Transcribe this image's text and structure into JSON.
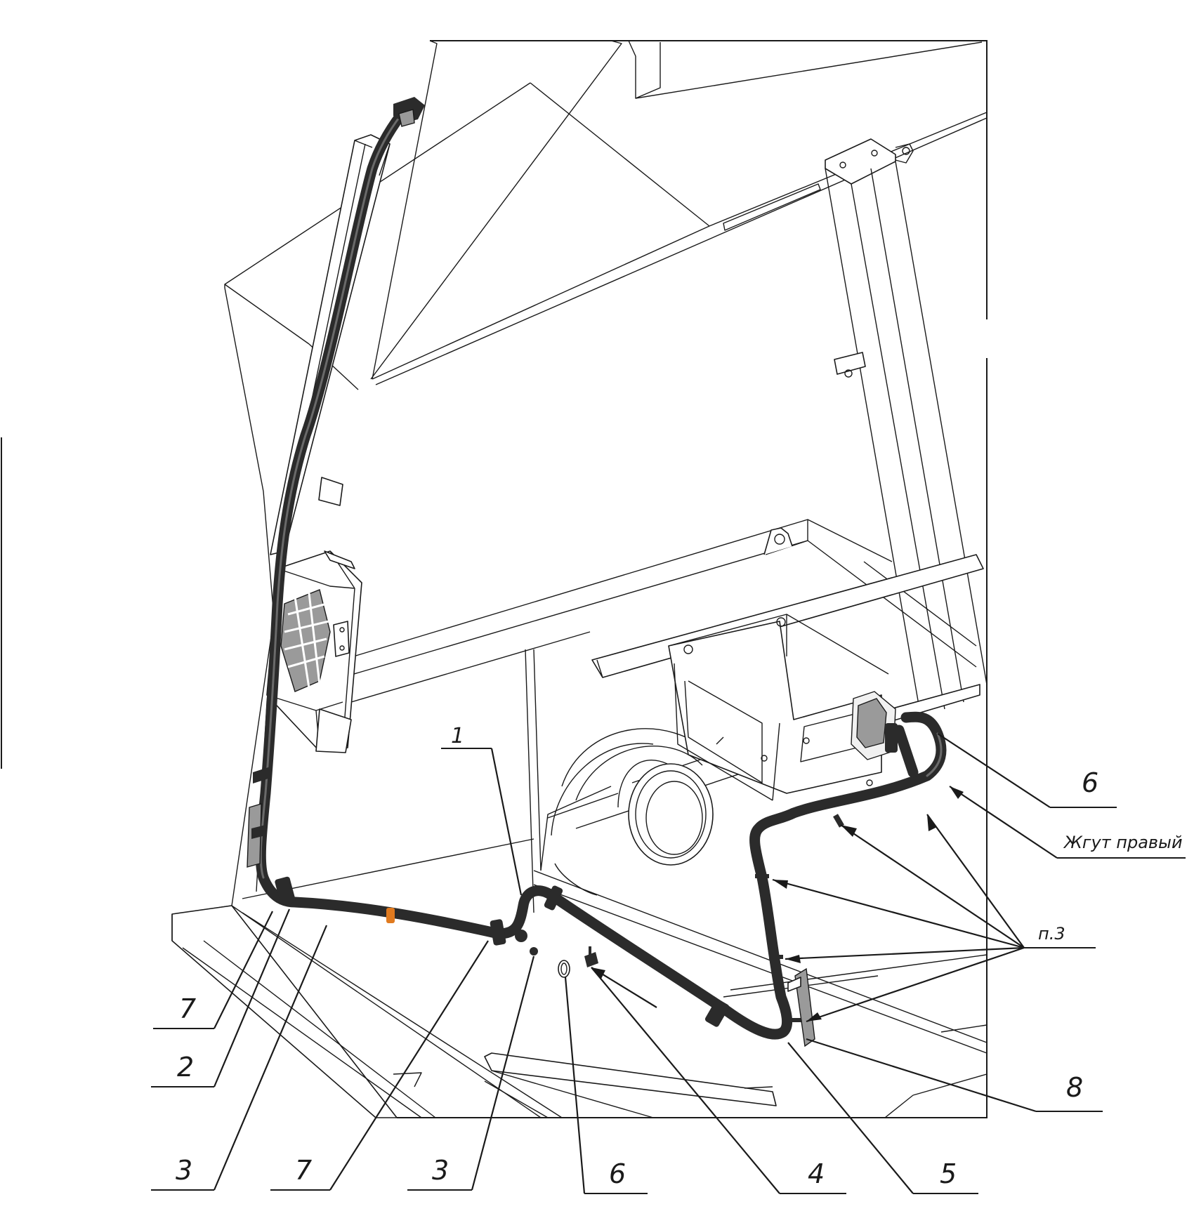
{
  "callouts": [
    {
      "id": "c1",
      "text": "1"
    },
    {
      "id": "c6a",
      "text": "6"
    },
    {
      "id": "cz",
      "text": "Жгут правый"
    },
    {
      "id": "cp3",
      "text": "п.3"
    },
    {
      "id": "c8",
      "text": "8"
    },
    {
      "id": "c7a",
      "text": "7"
    },
    {
      "id": "c2",
      "text": "2"
    },
    {
      "id": "c3a",
      "text": "3"
    },
    {
      "id": "c7b",
      "text": "7"
    },
    {
      "id": "c3b",
      "text": "3"
    },
    {
      "id": "c6b",
      "text": "6"
    },
    {
      "id": "c4",
      "text": "4"
    },
    {
      "id": "c5",
      "text": "5"
    }
  ],
  "colors": {
    "line": "#1a1a1a",
    "harness": "#2b2b2b",
    "tie_accent": "#e07a1f",
    "background": "#ffffff"
  }
}
